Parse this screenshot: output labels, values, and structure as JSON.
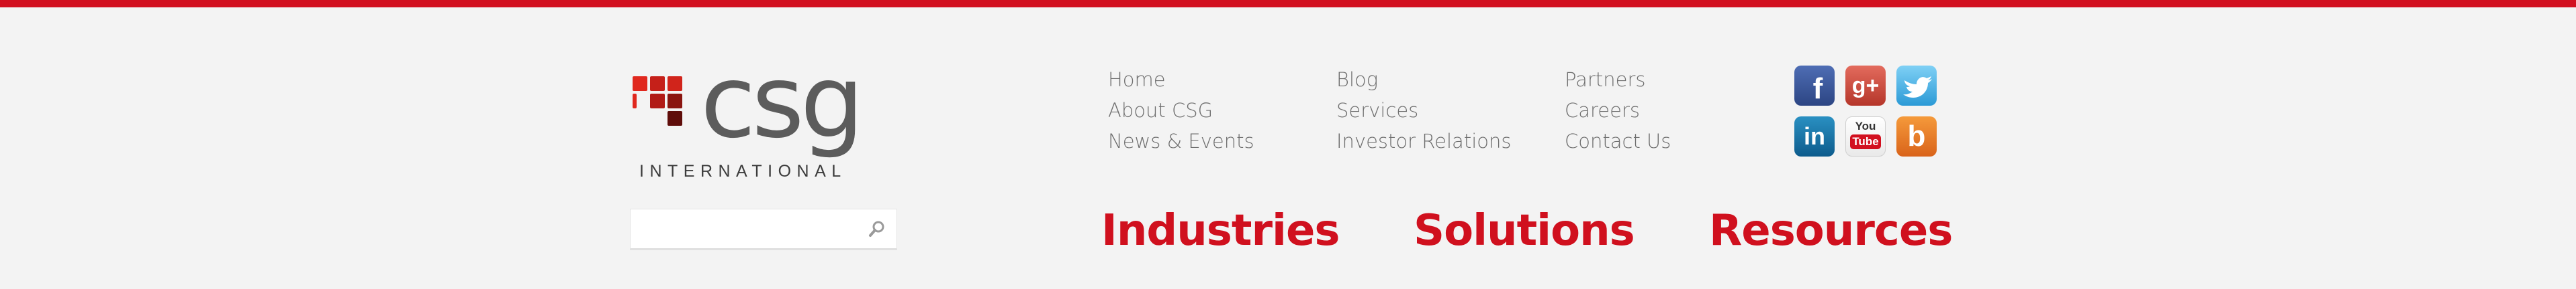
{
  "brand": {
    "logo_word": "csg",
    "logo_subtitle": "INTERNATIONAL",
    "colors": {
      "accent_red": "#d2101f",
      "logo_squares": [
        "#e0281e",
        "#b11a16",
        "#8a1510",
        "#5f0d0a"
      ]
    }
  },
  "search": {
    "placeholder": "",
    "value": "",
    "icon": "search-icon"
  },
  "nav": {
    "col1": [
      "Home",
      "About CSG",
      "News & Events"
    ],
    "col2": [
      "Blog",
      "Services",
      "Investor Relations"
    ],
    "col3": [
      "Partners",
      "Careers",
      "Contact Us"
    ]
  },
  "social": {
    "facebook": {
      "icon": "facebook-icon",
      "glyph": "f"
    },
    "googleplus": {
      "icon": "google-plus-icon",
      "glyph": "g+"
    },
    "twitter": {
      "icon": "twitter-icon"
    },
    "linkedin": {
      "icon": "linkedin-icon",
      "glyph": "in"
    },
    "youtube": {
      "icon": "youtube-icon",
      "glyph_top": "You",
      "glyph_bottom": "Tube"
    },
    "blogger": {
      "icon": "blogger-icon",
      "glyph": "b"
    }
  },
  "menu": {
    "industries": "Industries",
    "solutions": "Solutions",
    "resources": "Resources"
  }
}
